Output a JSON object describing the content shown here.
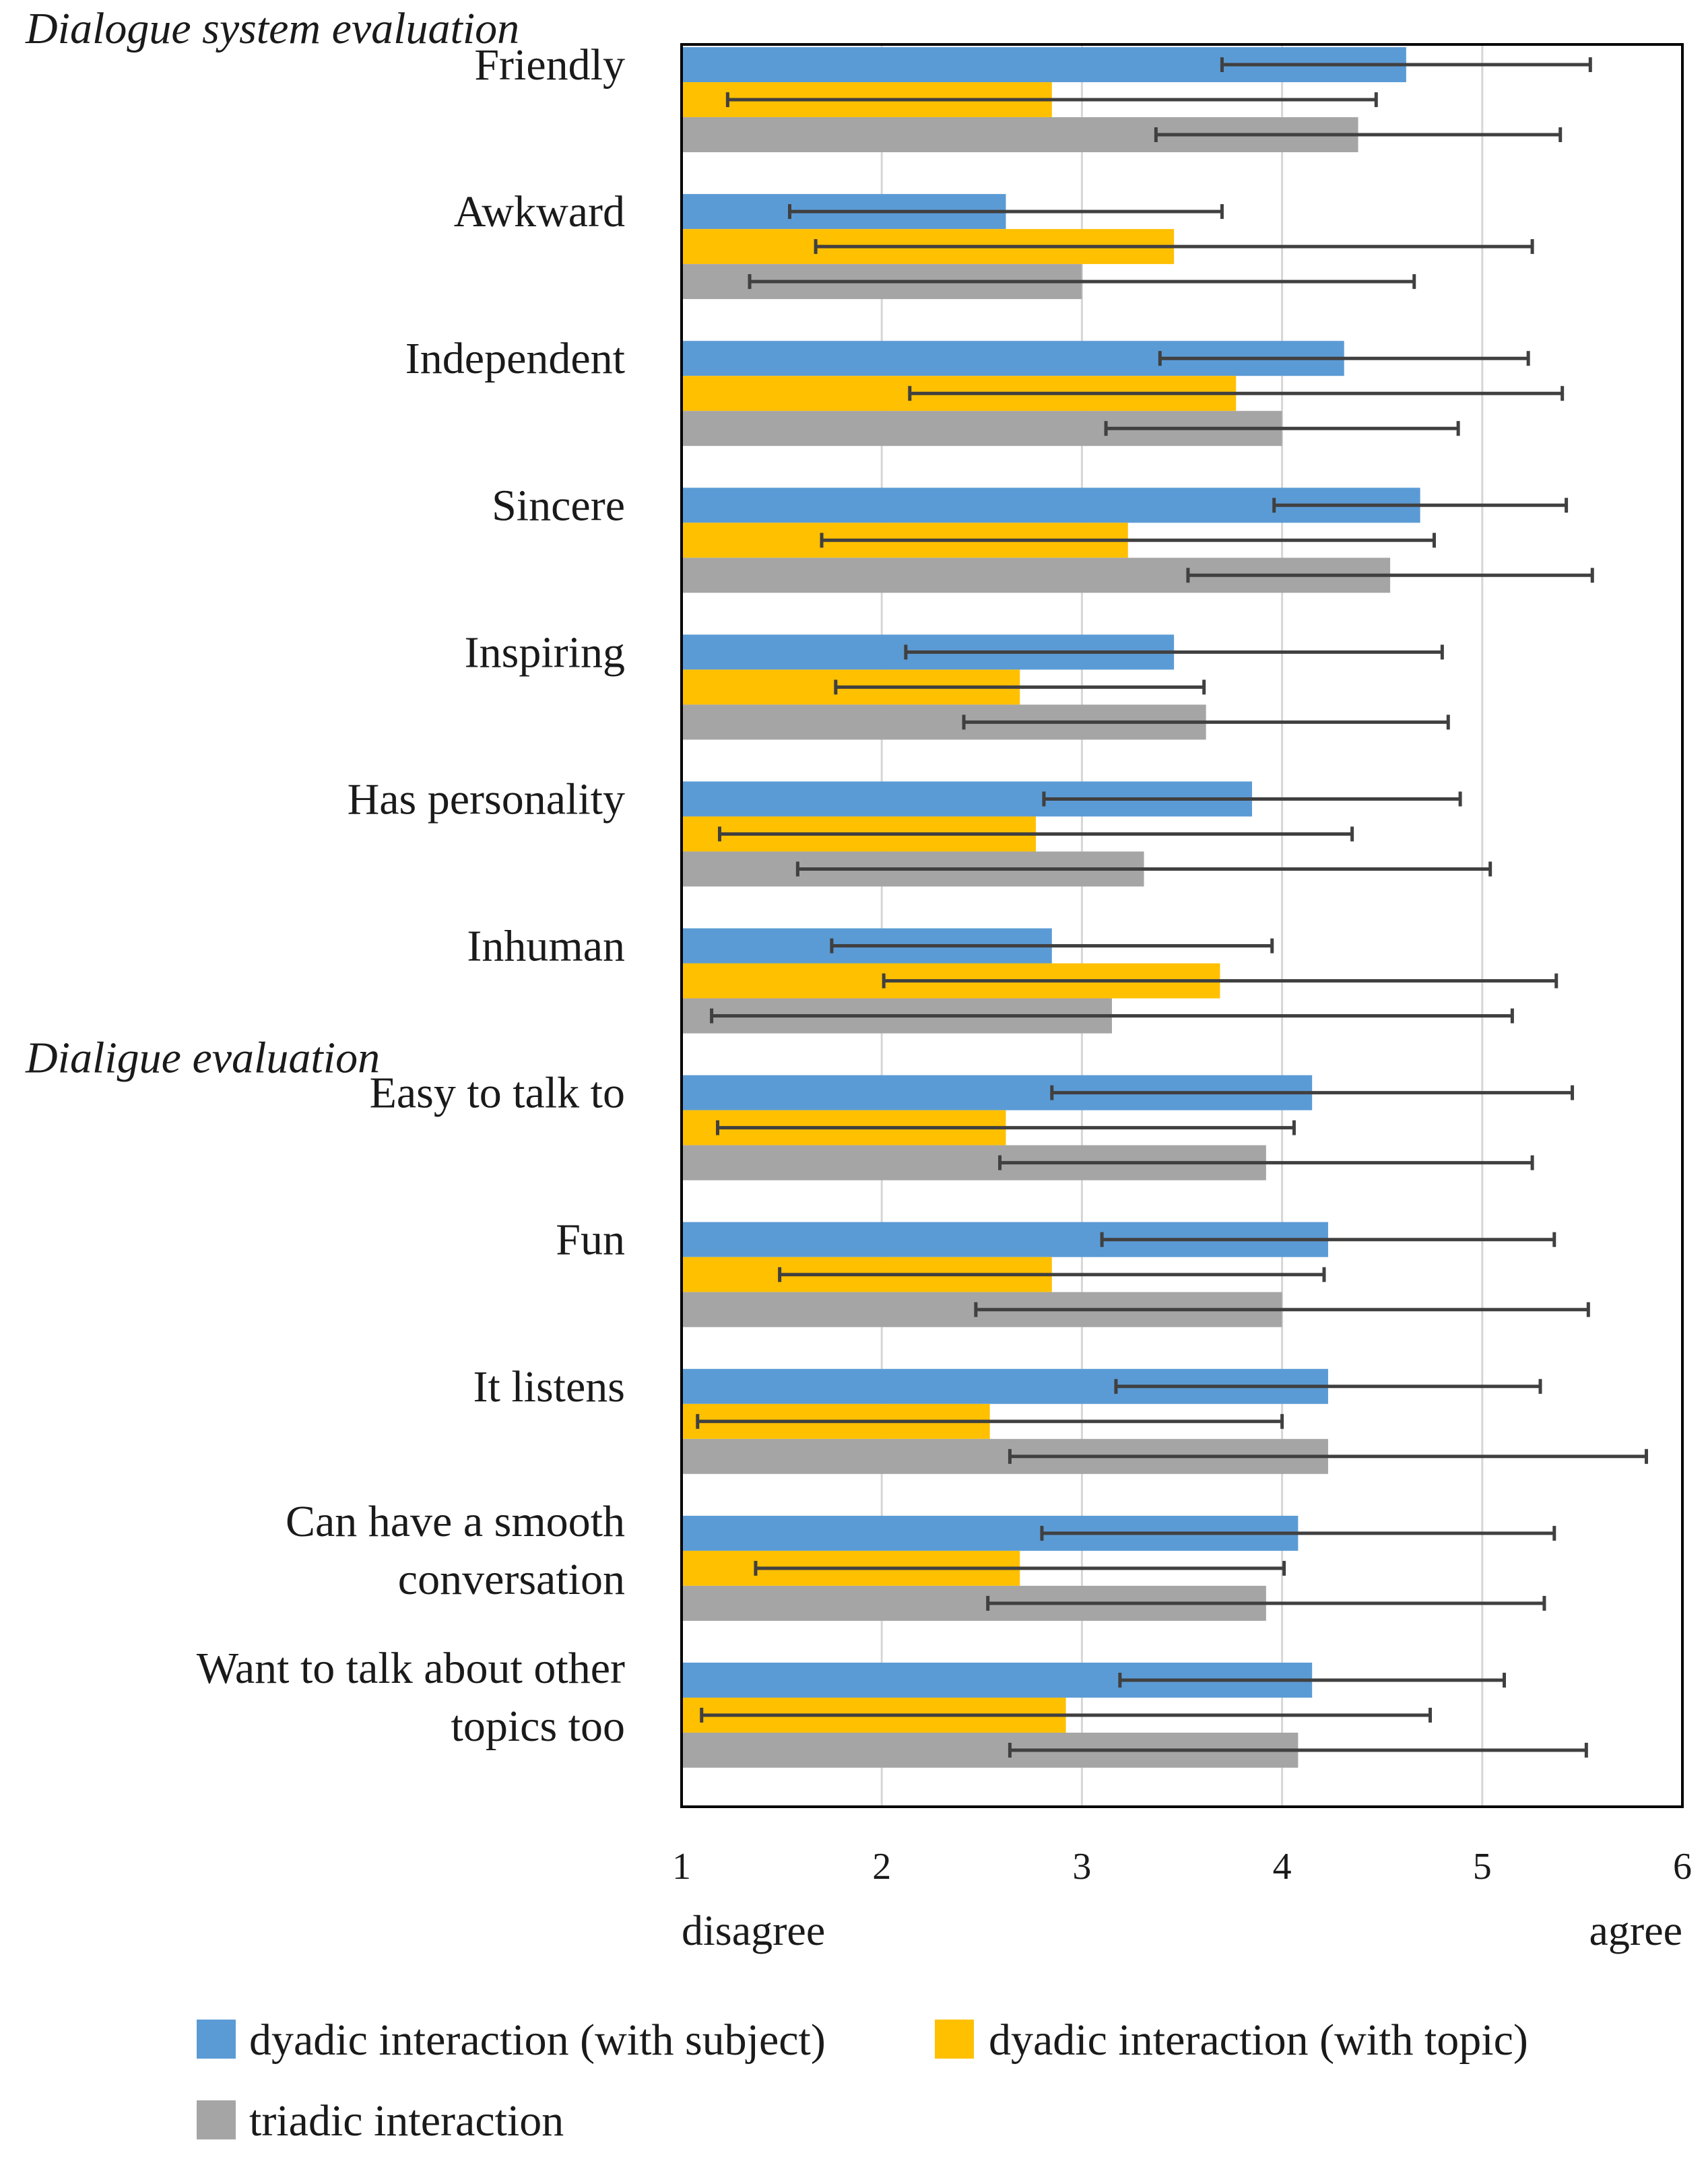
{
  "chart_data": {
    "type": "bar",
    "orientation": "horizontal",
    "xlim": [
      1,
      6
    ],
    "xticks": [
      "1",
      "2",
      "3",
      "4",
      "5",
      "6"
    ],
    "grid": true,
    "x_end_labels": {
      "left": "disagree",
      "right": "agree"
    },
    "sections": [
      {
        "title": "Dialogue system evaluation",
        "first_category": 0
      },
      {
        "title": "Dialigue evaluation",
        "first_category": 7
      }
    ],
    "categories": [
      [
        "Friendly"
      ],
      [
        "Awkward"
      ],
      [
        "Independent"
      ],
      [
        "Sincere"
      ],
      [
        "Inspiring"
      ],
      [
        "Has personality"
      ],
      [
        "Inhuman"
      ],
      [
        "Easy to talk to"
      ],
      [
        "Fun"
      ],
      [
        "It listens"
      ],
      [
        "Can have a smooth",
        "conversation"
      ],
      [
        "Want to talk about other",
        "topics too"
      ]
    ],
    "series": [
      {
        "name": "dyadic interaction (with subject)",
        "color": "#5b9bd5",
        "values": [
          4.62,
          2.62,
          4.31,
          4.69,
          3.46,
          3.85,
          2.85,
          4.15,
          4.23,
          4.23,
          4.08,
          4.15
        ],
        "errors": [
          0.92,
          1.08,
          0.92,
          0.73,
          1.34,
          1.04,
          1.1,
          1.3,
          1.13,
          1.06,
          1.28,
          0.96
        ]
      },
      {
        "name": "dyadic interaction (with topic)",
        "color": "#ffc000",
        "values": [
          2.85,
          3.46,
          3.77,
          3.23,
          2.69,
          2.77,
          3.69,
          2.62,
          2.85,
          2.54,
          2.69,
          2.92
        ],
        "errors": [
          1.62,
          1.79,
          1.63,
          1.53,
          0.92,
          1.58,
          1.68,
          1.44,
          1.36,
          1.46,
          1.32,
          1.82
        ]
      },
      {
        "name": "triadic interaction",
        "color": "#a5a5a5",
        "values": [
          4.38,
          3.0,
          4.0,
          4.54,
          3.62,
          3.31,
          3.15,
          3.92,
          4.0,
          4.23,
          3.92,
          4.08
        ],
        "errors": [
          1.01,
          1.66,
          0.88,
          1.01,
          1.21,
          1.73,
          2.0,
          1.33,
          1.53,
          1.59,
          1.39,
          1.44
        ]
      }
    ]
  }
}
